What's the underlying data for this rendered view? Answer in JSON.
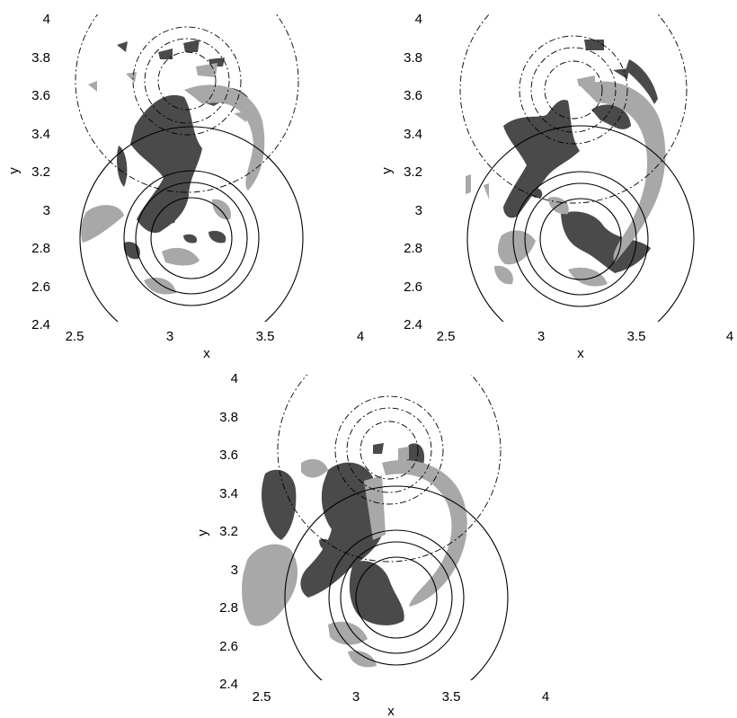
{
  "colors": {
    "dark_blob": "#4a4a4a",
    "light_blob": "#a8a8a8",
    "lower_circles": "#000000",
    "upper_circles": "#000000"
  },
  "chart_data": [
    {
      "type": "contour",
      "xlabel": "x",
      "ylabel": "y",
      "xlim": [
        2.5,
        4
      ],
      "ylim": [
        2.4,
        4
      ],
      "xticks": [
        "2.5",
        "3",
        "3.5",
        "4"
      ],
      "yticks": [
        "2.4",
        "2.6",
        "2.8",
        "3",
        "3.2",
        "3.4",
        "3.6",
        "3.8",
        "4"
      ],
      "grid": false,
      "upper_circles": {
        "style": "dash-dot",
        "center": [
          3.13,
          3.63
        ],
        "radii": [
          0.1,
          0.15,
          0.2,
          0.33
        ]
      },
      "lower_circles": {
        "style": "solid",
        "center": [
          3.13,
          2.83
        ],
        "radii": [
          0.1,
          0.15,
          0.2,
          0.33
        ]
      }
    },
    {
      "type": "contour",
      "xlabel": "x",
      "ylabel": "y",
      "xlim": [
        2.5,
        4
      ],
      "ylim": [
        2.4,
        4
      ],
      "xticks": [
        "2.5",
        "3",
        "3.5",
        "4"
      ],
      "yticks": [
        "2.4",
        "2.6",
        "2.8",
        "3",
        "3.2",
        "3.4",
        "3.6",
        "3.8",
        "4"
      ],
      "grid": false,
      "upper_circles": {
        "style": "dash-dot",
        "center": [
          3.13,
          3.63
        ],
        "radii": [
          0.1,
          0.15,
          0.2,
          0.33
        ]
      },
      "lower_circles": {
        "style": "solid",
        "center": [
          3.2,
          2.85
        ],
        "radii": [
          0.1,
          0.15,
          0.2,
          0.33
        ]
      }
    },
    {
      "type": "contour",
      "xlabel": "x",
      "ylabel": "y",
      "xlim": [
        2.5,
        4
      ],
      "ylim": [
        2.4,
        4
      ],
      "xticks": [
        "2.5",
        "3",
        "3.5",
        "4"
      ],
      "yticks": [
        "2.4",
        "2.6",
        "2.8",
        "3",
        "3.2",
        "3.4",
        "3.6",
        "3.8",
        "4"
      ],
      "grid": false,
      "upper_circles": {
        "style": "dash-dot",
        "center": [
          3.13,
          3.63
        ],
        "radii": [
          0.1,
          0.15,
          0.2,
          0.33
        ]
      },
      "lower_circles": {
        "style": "solid",
        "center": [
          3.2,
          2.85
        ],
        "radii": [
          0.1,
          0.15,
          0.2,
          0.33
        ]
      }
    }
  ]
}
